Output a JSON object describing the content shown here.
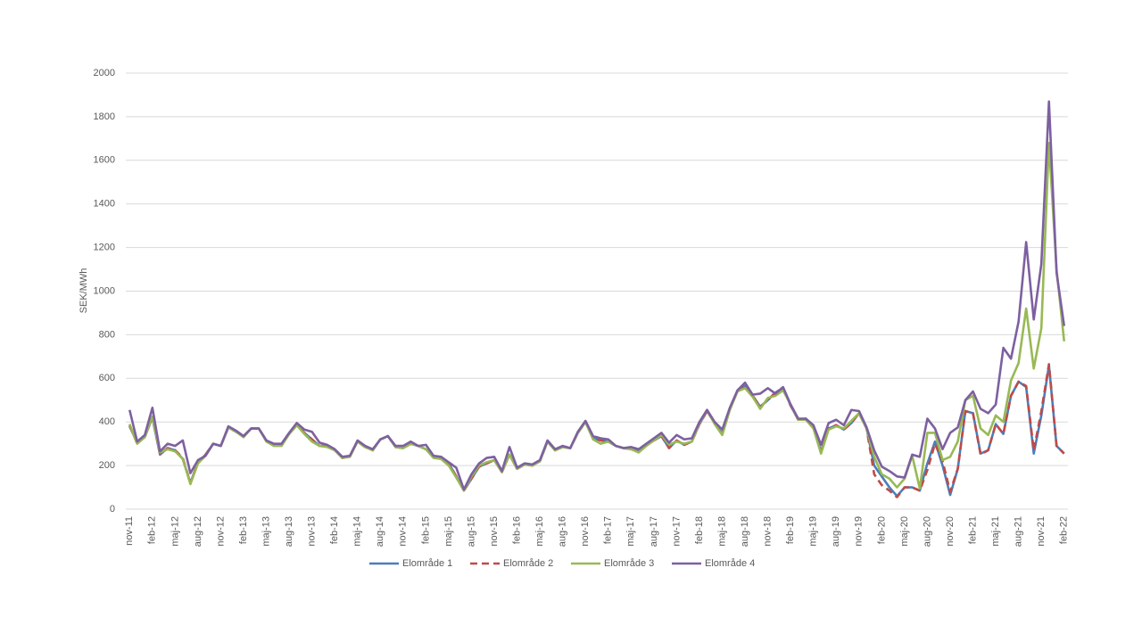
{
  "chart_data": {
    "type": "line",
    "y_label": "SEK/MWh",
    "categories": [
      "nov-11",
      null,
      null,
      "feb-12",
      null,
      null,
      "maj-12",
      null,
      null,
      "aug-12",
      null,
      null,
      "nov-12",
      null,
      null,
      "feb-13",
      null,
      null,
      "maj-13",
      null,
      null,
      "aug-13",
      null,
      null,
      "nov-13",
      null,
      null,
      "feb-14",
      null,
      null,
      "maj-14",
      null,
      null,
      "aug-14",
      null,
      null,
      "nov-14",
      null,
      null,
      "feb-15",
      null,
      null,
      "maj-15",
      null,
      null,
      "aug-15",
      null,
      null,
      "nov-15",
      null,
      null,
      "feb-16",
      null,
      null,
      "maj-16",
      null,
      null,
      "aug-16",
      null,
      null,
      "nov-16",
      null,
      null,
      "feb-17",
      null,
      null,
      "maj-17",
      null,
      null,
      "aug-17",
      null,
      null,
      "nov-17",
      null,
      null,
      "feb-18",
      null,
      null,
      "maj-18",
      null,
      null,
      "aug-18",
      null,
      null,
      "nov-18",
      null,
      null,
      "feb-19",
      null,
      null,
      "maj-19",
      null,
      null,
      "aug-19",
      null,
      null,
      "nov-19",
      null,
      null,
      "feb-20",
      null,
      null,
      "maj-20",
      null,
      null,
      "aug-20",
      null,
      null,
      "nov-20",
      null,
      null,
      "feb-21",
      null,
      null,
      "maj-21",
      null,
      null,
      "aug-21",
      null,
      null,
      "nov-21",
      null,
      null,
      "feb-22"
    ],
    "series": [
      {
        "name": "Elområde 1",
        "color": "#4a7ebb",
        "dashed": false,
        "values": [
          380,
          305,
          330,
          420,
          250,
          280,
          270,
          230,
          120,
          215,
          250,
          300,
          290,
          375,
          355,
          335,
          370,
          370,
          315,
          295,
          295,
          345,
          385,
          350,
          320,
          290,
          290,
          270,
          235,
          245,
          310,
          285,
          270,
          320,
          335,
          285,
          280,
          300,
          290,
          275,
          240,
          235,
          210,
          150,
          85,
          140,
          195,
          210,
          225,
          170,
          250,
          185,
          205,
          200,
          220,
          310,
          270,
          285,
          280,
          350,
          400,
          325,
          315,
          310,
          290,
          280,
          275,
          265,
          295,
          315,
          335,
          280,
          315,
          295,
          310,
          390,
          450,
          395,
          345,
          460,
          540,
          565,
          520,
          470,
          500,
          535,
          555,
          475,
          410,
          415,
          375,
          265,
          370,
          385,
          365,
          395,
          440,
          370,
          200,
          150,
          100,
          60,
          100,
          100,
          85,
          210,
          310,
          200,
          65,
          185,
          450,
          440,
          255,
          270,
          390,
          345,
          520,
          585,
          560,
          255,
          430,
          660,
          290,
          255
        ]
      },
      {
        "name": "Elområde 2",
        "color": "#be4b48",
        "dashed": true,
        "values": [
          385,
          300,
          335,
          420,
          255,
          280,
          270,
          235,
          120,
          215,
          250,
          300,
          290,
          375,
          355,
          335,
          370,
          370,
          315,
          295,
          295,
          345,
          385,
          350,
          320,
          290,
          290,
          270,
          235,
          245,
          310,
          285,
          270,
          320,
          335,
          285,
          280,
          300,
          290,
          275,
          240,
          235,
          210,
          150,
          85,
          140,
          195,
          210,
          225,
          170,
          250,
          185,
          205,
          200,
          220,
          310,
          270,
          285,
          280,
          350,
          400,
          325,
          315,
          310,
          290,
          280,
          275,
          265,
          295,
          315,
          335,
          280,
          315,
          295,
          310,
          390,
          450,
          395,
          345,
          460,
          540,
          565,
          520,
          470,
          500,
          535,
          555,
          475,
          410,
          415,
          375,
          265,
          370,
          385,
          365,
          395,
          440,
          370,
          160,
          110,
          85,
          55,
          100,
          100,
          85,
          180,
          300,
          220,
          80,
          185,
          450,
          440,
          250,
          270,
          390,
          345,
          520,
          585,
          565,
          270,
          450,
          665,
          290,
          255
        ]
      },
      {
        "name": "Elområde 3",
        "color": "#98b954",
        "dashed": false,
        "values": [
          390,
          300,
          330,
          425,
          260,
          275,
          265,
          230,
          115,
          210,
          245,
          300,
          290,
          375,
          355,
          330,
          370,
          370,
          310,
          290,
          290,
          345,
          385,
          345,
          310,
          290,
          285,
          270,
          235,
          240,
          310,
          285,
          270,
          320,
          335,
          285,
          280,
          300,
          290,
          275,
          235,
          230,
          200,
          145,
          85,
          150,
          200,
          215,
          225,
          170,
          250,
          185,
          205,
          200,
          220,
          310,
          270,
          285,
          280,
          350,
          400,
          320,
          300,
          310,
          290,
          280,
          275,
          260,
          290,
          315,
          340,
          295,
          310,
          300,
          310,
          395,
          455,
          390,
          340,
          455,
          540,
          555,
          515,
          460,
          510,
          520,
          545,
          480,
          410,
          410,
          370,
          255,
          365,
          380,
          370,
          405,
          440,
          370,
          240,
          160,
          140,
          100,
          140,
          245,
          95,
          350,
          350,
          225,
          240,
          310,
          500,
          520,
          370,
          340,
          430,
          400,
          590,
          670,
          920,
          645,
          830,
          1680,
          1100,
          770
        ]
      },
      {
        "name": "Elområde 4",
        "color": "#7d60a0",
        "dashed": false,
        "values": [
          455,
          310,
          340,
          465,
          265,
          300,
          290,
          315,
          165,
          225,
          245,
          300,
          290,
          380,
          360,
          335,
          370,
          370,
          315,
          300,
          300,
          350,
          395,
          365,
          355,
          305,
          295,
          275,
          240,
          245,
          315,
          290,
          275,
          320,
          335,
          290,
          290,
          310,
          290,
          295,
          245,
          240,
          215,
          190,
          90,
          160,
          210,
          235,
          240,
          175,
          285,
          190,
          210,
          205,
          225,
          315,
          275,
          290,
          280,
          355,
          405,
          335,
          325,
          320,
          290,
          280,
          285,
          275,
          300,
          325,
          350,
          305,
          340,
          320,
          325,
          400,
          455,
          400,
          365,
          465,
          545,
          580,
          525,
          530,
          555,
          530,
          560,
          480,
          415,
          415,
          385,
          295,
          395,
          410,
          385,
          455,
          450,
          375,
          270,
          195,
          175,
          150,
          145,
          250,
          240,
          415,
          370,
          275,
          350,
          375,
          500,
          540,
          460,
          440,
          480,
          740,
          690,
          860,
          1225,
          870,
          1125,
          1870,
          1085,
          840
        ]
      }
    ],
    "ylim": [
      0,
      2000
    ],
    "yticks": [
      0,
      200,
      400,
      600,
      800,
      1000,
      1200,
      1400,
      1600,
      1800,
      2000
    ],
    "grid": true,
    "legend": "bottom"
  }
}
